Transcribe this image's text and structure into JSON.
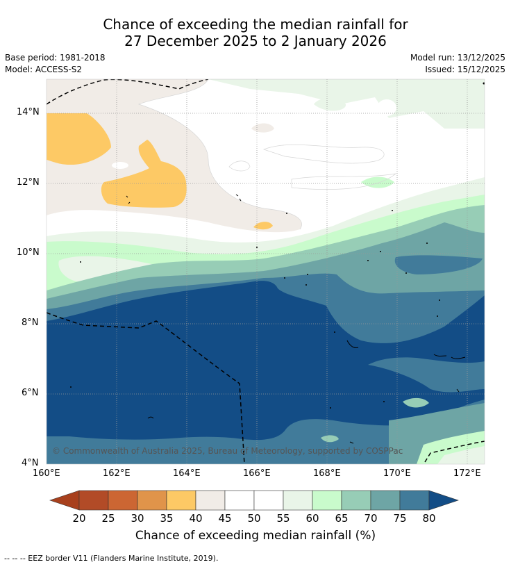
{
  "title": {
    "line1": "Chance of exceeding the median rainfall for",
    "line2": "27 December 2025 to 2 January 2026"
  },
  "meta": {
    "base_period": "Base period: 1981-2018",
    "model": "Model: ACCESS-S2",
    "model_run": "Model run: 13/12/2025",
    "issued": "Issued: 15/12/2025"
  },
  "map": {
    "lat_ticks": [
      "14°N",
      "12°N",
      "10°N",
      "8°N",
      "6°N",
      "4°N"
    ],
    "lon_ticks": [
      "160°E",
      "162°E",
      "164°E",
      "166°E",
      "168°E",
      "170°E",
      "172°E"
    ],
    "copyright": "© Commonwealth of Australia 2025, Bureau of Meteorology, supported by COSPPac"
  },
  "colorbar": {
    "ticks": [
      "20",
      "25",
      "30",
      "35",
      "40",
      "45",
      "50",
      "55",
      "60",
      "65",
      "70",
      "75",
      "80"
    ],
    "colors": [
      "#b24b27",
      "#cc6633",
      "#e0944a",
      "#fdc965",
      "#f1ece7",
      "#ffffff",
      "#ffffff",
      "#e9f5e8",
      "#c9fbcc",
      "#97cdb6",
      "#6ea5a5",
      "#417b9a"
    ],
    "low_color": "#a8401d",
    "high_color": "#134d86",
    "label": "Chance of exceeding median rainfall (%)"
  },
  "footnote": "-- -- -- EEZ border V11 (Flanders Marine Institute, 2019)."
}
